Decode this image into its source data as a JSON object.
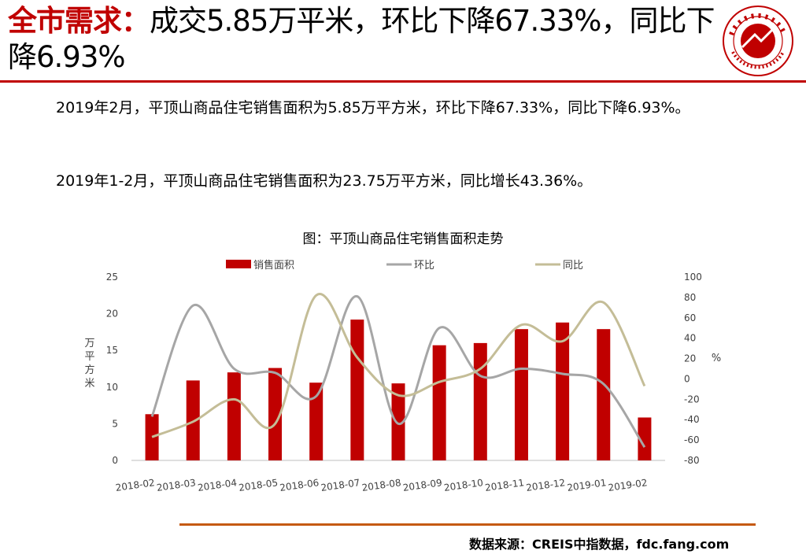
{
  "header": {
    "title_highlight": "全市需求：",
    "title_rest": "成交5.85万平米，环比下降67.33%，同比下降6.93%",
    "logo_icon": "china-index-academy-seal-icon",
    "accent_color": "#c00000"
  },
  "body": {
    "para1": "2019年2月，平顶山商品住宅销售面积为5.85万平方米，环比下降67.33%，同比下降6.93%。",
    "para2": "2019年1-2月，平顶山商品住宅销售面积为23.75万平方米，同比增长43.36%。"
  },
  "chart_data": {
    "type": "bar",
    "title": "图：平顶山商品住宅销售面积走势",
    "categories": [
      "2018-02",
      "2018-03",
      "2018-04",
      "2018-05",
      "2018-06",
      "2018-07",
      "2018-08",
      "2018-09",
      "2018-10",
      "2018-11",
      "2018-12",
      "2019-01",
      "2019-02"
    ],
    "series": [
      {
        "name": "销售面积",
        "type": "bar",
        "axis": "left",
        "color": "#c00000",
        "values": [
          6.3,
          10.9,
          12.0,
          12.6,
          10.6,
          19.2,
          10.5,
          15.7,
          16.0,
          17.9,
          18.8,
          17.9,
          5.85
        ]
      },
      {
        "name": "环比",
        "type": "line",
        "axis": "right",
        "color": "#a6a6a6",
        "values": [
          -37,
          72,
          10,
          6,
          -17,
          81,
          -44,
          50,
          3,
          10,
          5,
          -5,
          -67
        ]
      },
      {
        "name": "同比",
        "type": "line",
        "axis": "right",
        "color": "#c4bd97",
        "values": [
          -57,
          -42,
          -20,
          -44,
          82,
          21,
          -16,
          -3,
          10,
          53,
          37,
          75,
          -7
        ]
      }
    ],
    "ylabel": "万平方米",
    "y2label": "%",
    "ylim": [
      0,
      25
    ],
    "yticks": [
      0,
      5,
      10,
      15,
      20,
      25
    ],
    "y2lim": [
      -80,
      100
    ],
    "y2ticks": [
      -80,
      -60,
      -40,
      -20,
      0,
      20,
      40,
      60,
      80,
      100
    ],
    "legend": "top-center",
    "grid": false
  },
  "footer": {
    "source": "数据来源：CREIS中指数据，fdc.fang.com",
    "rule_color": "#c55a11"
  }
}
